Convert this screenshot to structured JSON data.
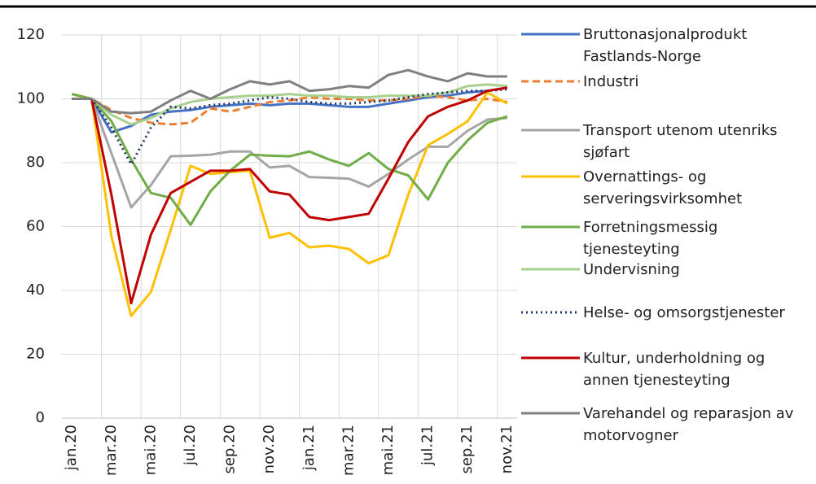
{
  "chart_data": {
    "type": "line",
    "categories": [
      "jan.20",
      null,
      "mar.20",
      null,
      "mai.20",
      null,
      "jul.20",
      null,
      "sep.20",
      null,
      "nov.20",
      null,
      "jan.21",
      null,
      "mar.21",
      null,
      "mai.21",
      null,
      "jul.21",
      null,
      "sep.21",
      null,
      "nov.21"
    ],
    "ylim": [
      0,
      120
    ],
    "yticks": [
      0,
      20,
      40,
      60,
      80,
      100,
      120
    ],
    "grid": true,
    "series": [
      {
        "name": "Bruttonasjonalprodukt Fastlands-Norge",
        "color": "#4472c4",
        "style": "solid",
        "values": [
          100,
          100,
          89.5,
          91.5,
          95,
          96,
          96.5,
          97.5,
          98,
          98.5,
          98,
          98.5,
          98.5,
          98,
          97.5,
          97.5,
          98.5,
          99.5,
          100.5,
          101,
          102,
          102.5,
          103.5
        ]
      },
      {
        "name": "Industri",
        "color": "#ed7d31",
        "style": "dashed",
        "values": [
          100,
          100,
          96.5,
          94,
          92.5,
          92,
          92.5,
          97,
          96,
          97.5,
          99,
          99.5,
          100.5,
          100,
          100,
          99.5,
          99.5,
          100,
          101,
          100.5,
          99.5,
          100,
          99
        ]
      },
      {
        "name": "Transport utenom utenriks sjøfart",
        "color": "#a5a5a5",
        "style": "solid",
        "values": [
          100,
          100,
          83,
          66,
          73,
          82,
          82.2,
          82.5,
          83.5,
          83.5,
          78.5,
          79,
          75.5,
          75.3,
          75,
          72.5,
          76.5,
          81,
          85,
          85,
          90,
          93.5,
          94
        ]
      },
      {
        "name": "Overnattings- og serveringsvirksomhet",
        "color": "#ffc000",
        "style": "solid",
        "values": [
          101.5,
          100,
          57,
          32,
          39.5,
          59,
          79,
          76.5,
          77,
          77.5,
          56.5,
          58,
          53.5,
          54,
          53,
          48.5,
          51,
          70,
          85.5,
          89,
          93,
          102,
          98.5
        ]
      },
      {
        "name": "Forretningsmessig tjenesteyting",
        "color": "#70ad47",
        "style": "solid",
        "values": [
          101.5,
          100,
          93,
          81,
          70.5,
          69,
          60.5,
          71,
          77.5,
          82.5,
          82.2,
          82,
          83.5,
          81,
          79,
          83,
          78,
          76,
          68.5,
          80,
          87,
          92.5,
          94.5
        ]
      },
      {
        "name": "Undervisning",
        "color": "#a9d18e",
        "style": "solid",
        "values": [
          100,
          100,
          95,
          92,
          94,
          97,
          99,
          100,
          100.5,
          101,
          101,
          101.5,
          101,
          101,
          100.5,
          100.5,
          101,
          101,
          101,
          102,
          104,
          104.5,
          104
        ]
      },
      {
        "name": "Helse- og omsorgstjenester",
        "color": "#203864",
        "style": "dotted",
        "values": [
          100,
          100,
          91,
          79.5,
          91,
          97.5,
          97,
          98,
          98.5,
          99.5,
          100.5,
          100,
          99,
          98.5,
          98.5,
          99,
          99.5,
          100.5,
          101.5,
          102,
          102.5,
          102.5,
          103
        ]
      },
      {
        "name": "Kultur, underholdning og annen tjenesteyting",
        "color": "#c00000",
        "style": "solid",
        "values": [
          100,
          100,
          70,
          36,
          57.5,
          70.5,
          74,
          77.5,
          77.5,
          78,
          71,
          70,
          63,
          62,
          63,
          64,
          75,
          86.5,
          94.5,
          97.5,
          99.5,
          102.5,
          103.5
        ]
      },
      {
        "name": "Varehandel og reparasjon av motorvogner",
        "color": "#7f7f7f",
        "style": "solid",
        "values": [
          100,
          100,
          96,
          95.5,
          96,
          99.5,
          102.5,
          100,
          103,
          105.5,
          104.5,
          105.5,
          102.5,
          103,
          104,
          103.5,
          107.5,
          109,
          107,
          105.5,
          108,
          107,
          107
        ]
      }
    ]
  }
}
